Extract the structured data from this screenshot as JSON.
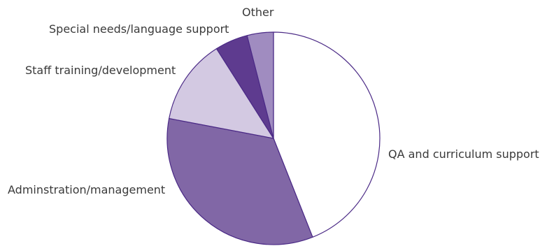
{
  "chart_data": {
    "type": "pie",
    "start_angle_deg": 0,
    "direction": "clockwise",
    "slice_outline_color": "#4b2a86",
    "slices": [
      {
        "label": "QA and curriculum support",
        "value": 44,
        "color": "#ffffff"
      },
      {
        "label": "Adminstration/management",
        "value": 34,
        "color": "#8167a6"
      },
      {
        "label": "Staff training/development",
        "value": 13,
        "color": "#d3c9e2"
      },
      {
        "label": "Special needs/language support",
        "value": 5,
        "color": "#5e3b8f"
      },
      {
        "label": "Other",
        "value": 4,
        "color": "#a08cc0"
      }
    ]
  }
}
